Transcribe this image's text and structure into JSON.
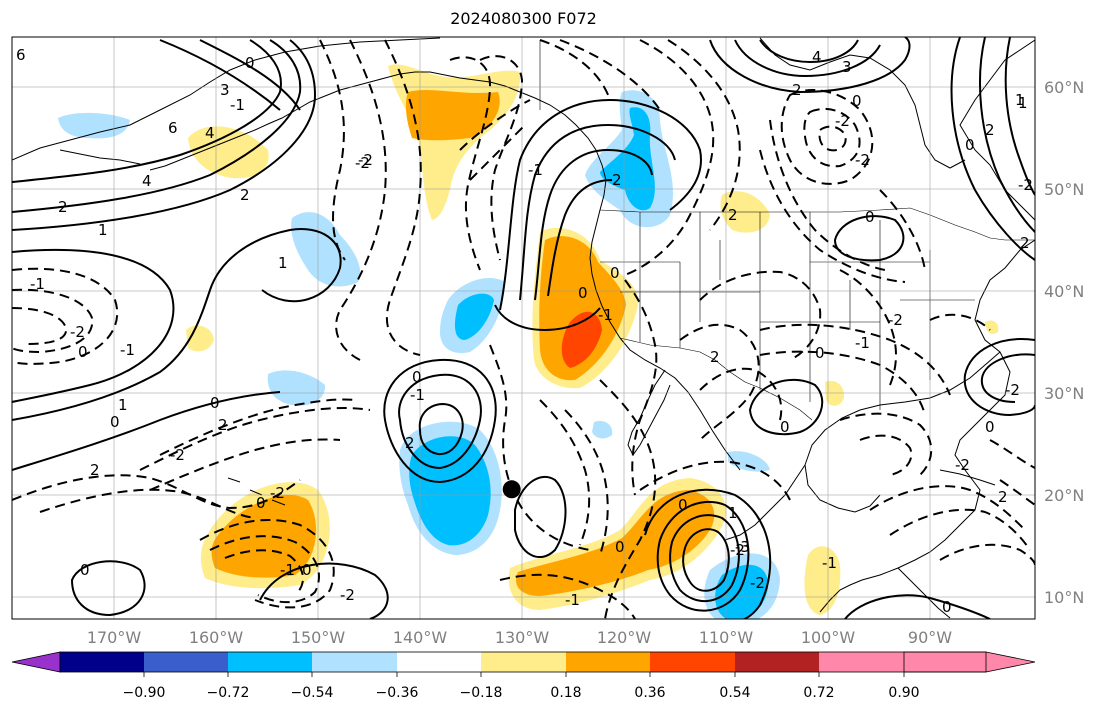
{
  "title": "2024080300 F072",
  "map": {
    "lon_labels": [
      "170°W",
      "160°W",
      "150°W",
      "140°W",
      "130°W",
      "120°W",
      "110°W",
      "100°W",
      "90°W"
    ],
    "lat_labels": [
      "60°N",
      "50°N",
      "40°N",
      "30°N",
      "20°N",
      "10°N"
    ],
    "lon_range": [
      -177,
      -82
    ],
    "lat_range": [
      8,
      65
    ],
    "marker": {
      "name": "point",
      "lon": -130.6,
      "lat": 20.7,
      "color": "#000000"
    }
  },
  "colorbar": {
    "ticks": [
      "−0.90",
      "−0.72",
      "−0.54",
      "−0.36",
      "−0.18",
      "0.18",
      "0.36",
      "0.54",
      "0.72",
      "0.90"
    ],
    "colors": [
      "#9932CC",
      "#00008B",
      "#3A5FCD",
      "#00BFFF",
      "#B0E2FF",
      "#FFFFFF",
      "#FFEC8B",
      "#FFA500",
      "#FF4500",
      "#B22222",
      "#FF88AA"
    ]
  },
  "contour_labels": [
    "6",
    "4",
    "3",
    "2",
    "1",
    "0",
    "-1",
    "-2",
    "6",
    "4",
    "2",
    "1",
    "-1",
    "-2",
    "0",
    "-1",
    "0",
    "1",
    "2",
    "-2",
    "0",
    "2",
    "0",
    "-1",
    "-2",
    "0",
    "2",
    "0",
    "-1",
    "0",
    "-2",
    "-1",
    "0",
    "-1",
    "2",
    "4",
    "3",
    "2",
    "0",
    "-2",
    "-2",
    "2",
    "0",
    "1",
    "2",
    "0",
    "-2",
    "-1",
    "0",
    "0",
    "2",
    "-2",
    "2",
    "-1",
    "1",
    "0",
    "0",
    "-2",
    "-2",
    "-1",
    "0",
    "-2",
    "-3",
    "-2",
    "0",
    "-2",
    "2",
    "1",
    "0"
  ],
  "colors": {
    "shade_yellow": "#FFEC8B",
    "shade_orange": "#FFA500",
    "shade_red": "#FF4500",
    "shade_lightblue": "#B0E2FF",
    "shade_blue": "#00BFFF"
  }
}
